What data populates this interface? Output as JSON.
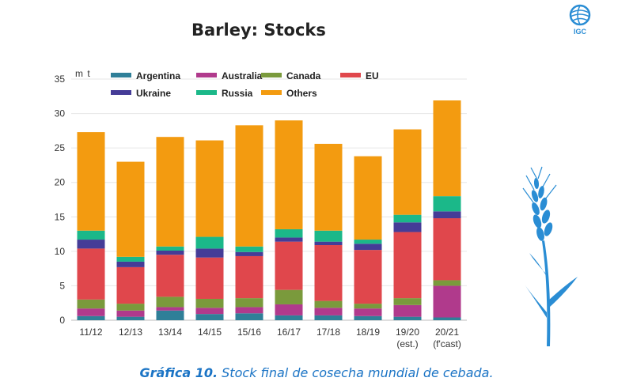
{
  "figure": {
    "title": "Barley: Stocks",
    "unit_label": "m t",
    "logo_text": "IGC",
    "caption_label": "Gráfica 10.",
    "caption_text": " Stock final de cosecha mundial de cebada."
  },
  "colors": {
    "Argentina": "#2f7f98",
    "Australia": "#b03a8c",
    "Canada": "#7a9a3c",
    "EU": "#e0474c",
    "Ukraine": "#453c97",
    "Russia": "#1bb889",
    "Others": "#f39b10",
    "caption": "#1b74c5",
    "logo": "#2a8dd4"
  },
  "chart_data": {
    "type": "bar",
    "stacked": true,
    "title": "Barley: Stocks",
    "ylabel": "m t",
    "ylim": [
      0,
      35
    ],
    "yticks": [
      0,
      5,
      10,
      15,
      20,
      25,
      30,
      35
    ],
    "categories": [
      "11/12",
      "12/13",
      "13/14",
      "14/15",
      "15/16",
      "16/17",
      "17/18",
      "18/19",
      "19/20",
      "20/21"
    ],
    "category_sublabels": [
      "",
      "",
      "",
      "",
      "",
      "",
      "",
      "",
      "(est.)",
      "(f'cast)"
    ],
    "series": [
      {
        "name": "Argentina",
        "values": [
          0.6,
          0.5,
          1.4,
          0.9,
          1.0,
          0.7,
          0.7,
          0.6,
          0.5,
          0.4
        ]
      },
      {
        "name": "Australia",
        "values": [
          1.1,
          0.9,
          0.5,
          0.9,
          0.9,
          1.6,
          1.1,
          1.1,
          1.7,
          4.6
        ]
      },
      {
        "name": "Canada",
        "values": [
          1.3,
          1.0,
          1.5,
          1.3,
          1.3,
          2.1,
          1.0,
          0.7,
          1.0,
          0.8
        ]
      },
      {
        "name": "EU",
        "values": [
          7.4,
          5.3,
          6.1,
          6.0,
          6.1,
          7.0,
          8.1,
          7.8,
          9.6,
          9.0
        ]
      },
      {
        "name": "Ukraine",
        "values": [
          1.3,
          0.8,
          0.6,
          1.3,
          0.6,
          0.6,
          0.5,
          0.9,
          1.4,
          1.0
        ]
      },
      {
        "name": "Russia",
        "values": [
          1.3,
          0.7,
          0.6,
          1.7,
          0.8,
          1.2,
          1.6,
          0.6,
          1.1,
          2.2
        ]
      },
      {
        "name": "Others",
        "values": [
          14.3,
          13.8,
          15.9,
          14.0,
          17.6,
          15.8,
          12.6,
          12.1,
          12.4,
          13.9
        ]
      }
    ],
    "legend_position": "top",
    "grid": true
  }
}
